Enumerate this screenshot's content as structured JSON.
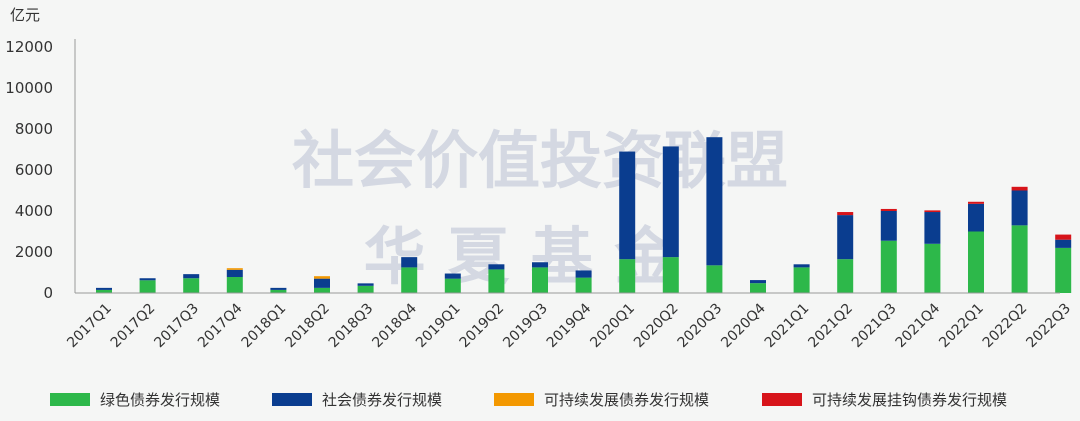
{
  "chart_data": {
    "type": "bar",
    "stacked": true,
    "unit_label": "亿元",
    "categories": [
      "2017Q1",
      "2017Q2",
      "2017Q3",
      "2017Q4",
      "2018Q1",
      "2018Q2",
      "2018Q3",
      "2018Q4",
      "2019Q1",
      "2019Q2",
      "2019Q3",
      "2019Q4",
      "2020Q1",
      "2020Q2",
      "2020Q3",
      "2020Q4",
      "2021Q1",
      "2021Q2",
      "2021Q3",
      "2021Q4",
      "2022Q1",
      "2022Q2",
      "2022Q3"
    ],
    "series": [
      {
        "name": "绿色债券发行规模",
        "color": "#2db84a",
        "values": [
          150,
          620,
          720,
          780,
          150,
          250,
          350,
          1250,
          700,
          1150,
          1250,
          750,
          1650,
          1750,
          1350,
          480,
          1250,
          1650,
          2550,
          2400,
          3000,
          3300,
          2200
        ]
      },
      {
        "name": "社会债券发行规模",
        "color": "#0a3d8f",
        "values": [
          100,
          100,
          200,
          350,
          100,
          450,
          120,
          500,
          250,
          250,
          250,
          350,
          5250,
          5400,
          6250,
          150,
          150,
          2150,
          1450,
          1550,
          1350,
          1700,
          400
        ]
      },
      {
        "name": "可持续发展债券发行规模",
        "color": "#f39800",
        "values": [
          0,
          0,
          0,
          80,
          0,
          120,
          0,
          0,
          0,
          0,
          0,
          0,
          0,
          0,
          0,
          0,
          0,
          0,
          0,
          0,
          0,
          0,
          0
        ]
      },
      {
        "name": "可持续发展挂钩债券发行规模",
        "color": "#d7141a",
        "values": [
          0,
          0,
          0,
          0,
          0,
          0,
          0,
          0,
          0,
          0,
          0,
          0,
          0,
          0,
          0,
          0,
          0,
          150,
          100,
          80,
          100,
          180,
          250
        ]
      }
    ],
    "y_ticks": [
      "0",
      "2000",
      "4000",
      "6000",
      "8000",
      "10000",
      "12000"
    ],
    "ylim": [
      0,
      12000
    ],
    "grid": false,
    "legend_position": "bottom",
    "watermark": [
      "社会价值投资联盟",
      "华 夏 基 金"
    ]
  }
}
